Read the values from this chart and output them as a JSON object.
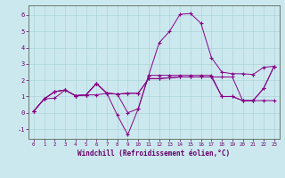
{
  "xlabel": "Windchill (Refroidissement éolien,°C)",
  "background_color": "#cce8ef",
  "grid_color": "#aad4d8",
  "line_color": "#880088",
  "x_hours": [
    0,
    1,
    2,
    3,
    4,
    5,
    6,
    7,
    8,
    9,
    10,
    11,
    12,
    13,
    14,
    15,
    16,
    17,
    18,
    19,
    20,
    21,
    22,
    23
  ],
  "series": [
    [
      0.1,
      0.85,
      0.9,
      1.4,
      1.05,
      1.1,
      1.8,
      1.2,
      1.15,
      0.0,
      0.25,
      2.3,
      4.3,
      5.0,
      6.05,
      6.1,
      5.5,
      3.4,
      2.5,
      2.4,
      2.4,
      2.35,
      2.8,
      2.85
    ],
    [
      0.1,
      0.85,
      1.3,
      1.4,
      1.05,
      1.1,
      1.1,
      1.2,
      1.15,
      1.2,
      1.2,
      2.1,
      2.1,
      2.15,
      2.2,
      2.2,
      2.2,
      2.2,
      2.2,
      2.2,
      0.75,
      0.75,
      1.5,
      2.85
    ],
    [
      0.1,
      0.85,
      1.3,
      1.4,
      1.05,
      1.1,
      1.8,
      1.2,
      -0.15,
      -1.35,
      0.25,
      2.3,
      2.3,
      2.3,
      2.3,
      2.3,
      2.3,
      2.3,
      1.0,
      1.0,
      0.75,
      0.75,
      0.75,
      0.75
    ],
    [
      0.1,
      0.85,
      1.3,
      1.4,
      1.05,
      1.1,
      1.8,
      1.2,
      1.15,
      1.2,
      1.2,
      2.1,
      2.1,
      2.15,
      2.2,
      2.2,
      2.2,
      2.2,
      1.0,
      1.0,
      0.75,
      0.75,
      1.5,
      2.85
    ]
  ],
  "ylim": [
    -1.6,
    6.6
  ],
  "yticks": [
    -1,
    0,
    1,
    2,
    3,
    4,
    5,
    6
  ],
  "xlim": [
    -0.5,
    23.5
  ],
  "xticks": [
    0,
    1,
    2,
    3,
    4,
    5,
    6,
    7,
    8,
    9,
    10,
    11,
    12,
    13,
    14,
    15,
    16,
    17,
    18,
    19,
    20,
    21,
    22,
    23
  ],
  "spine_color": "#556655",
  "tick_color": "#660066",
  "xlabel_color": "#660066"
}
